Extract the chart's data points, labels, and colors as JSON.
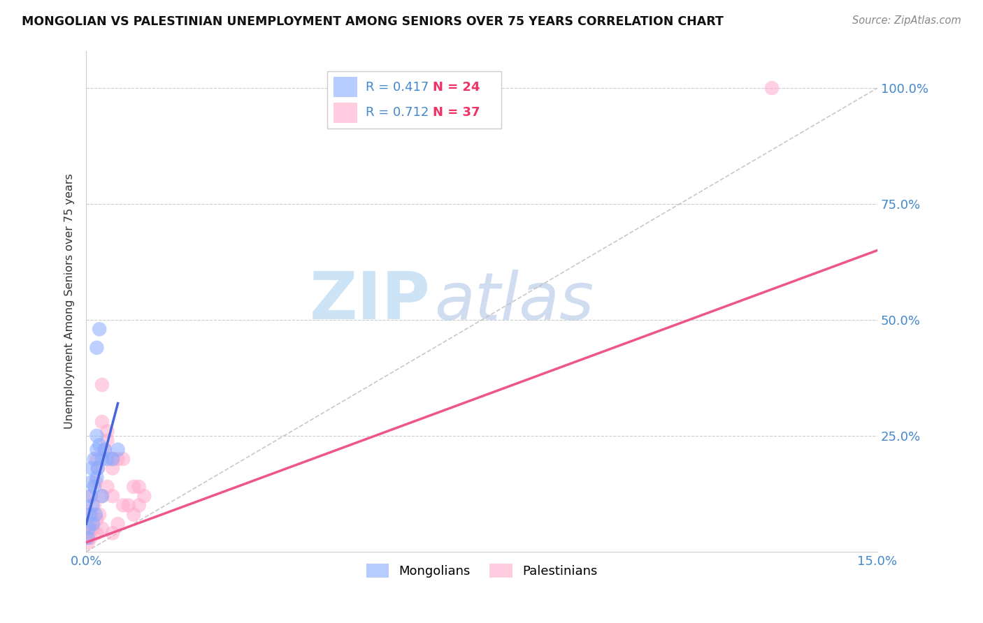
{
  "title": "MONGOLIAN VS PALESTINIAN UNEMPLOYMENT AMONG SENIORS OVER 75 YEARS CORRELATION CHART",
  "source": "Source: ZipAtlas.com",
  "ylabel_label": "Unemployment Among Seniors over 75 years",
  "xlim": [
    0,
    0.15
  ],
  "ylim": [
    0,
    1.08
  ],
  "mongolian_color": "#88aaff",
  "palestinian_color": "#ffaacc",
  "mongolian_line_color": "#4466dd",
  "palestinian_line_color": "#ee5588",
  "diagonal_color": "#bbbbbb",
  "watermark_zip": "ZIP",
  "watermark_atlas": "atlas",
  "legend_r_mongolian": "R = 0.417",
  "legend_n_mongolian": "N = 24",
  "legend_r_palestinian": "R = 0.712",
  "legend_n_palestinian": "N = 37",
  "r_color": "#4488cc",
  "n_color": "#ee3366",
  "mongolian_points_x": [
    0.0003,
    0.0005,
    0.0007,
    0.0008,
    0.001,
    0.001,
    0.0012,
    0.0013,
    0.0015,
    0.0015,
    0.0018,
    0.002,
    0.002,
    0.002,
    0.0022,
    0.0025,
    0.003,
    0.003,
    0.0035,
    0.004,
    0.005,
    0.006,
    0.002,
    0.0025
  ],
  "mongolian_points_y": [
    0.03,
    0.05,
    0.08,
    0.12,
    0.15,
    0.18,
    0.1,
    0.06,
    0.14,
    0.2,
    0.08,
    0.22,
    0.16,
    0.25,
    0.18,
    0.23,
    0.12,
    0.2,
    0.22,
    0.2,
    0.2,
    0.22,
    0.44,
    0.48
  ],
  "palestinian_points_x": [
    0.0003,
    0.0005,
    0.0007,
    0.0008,
    0.001,
    0.001,
    0.0012,
    0.0015,
    0.0018,
    0.002,
    0.002,
    0.002,
    0.0022,
    0.0025,
    0.003,
    0.003,
    0.003,
    0.0035,
    0.004,
    0.004,
    0.005,
    0.005,
    0.005,
    0.006,
    0.006,
    0.007,
    0.007,
    0.008,
    0.009,
    0.009,
    0.01,
    0.01,
    0.011,
    0.003,
    0.004,
    0.005,
    0.13
  ],
  "palestinian_points_y": [
    0.02,
    0.04,
    0.06,
    0.03,
    0.08,
    0.12,
    0.05,
    0.1,
    0.15,
    0.04,
    0.07,
    0.2,
    0.18,
    0.08,
    0.05,
    0.12,
    0.28,
    0.22,
    0.14,
    0.24,
    0.04,
    0.12,
    0.18,
    0.06,
    0.2,
    0.1,
    0.2,
    0.1,
    0.08,
    0.14,
    0.1,
    0.14,
    0.12,
    0.36,
    0.26,
    0.2,
    1.0
  ],
  "mongolian_line_x": [
    0.0,
    0.006
  ],
  "mongolian_line_y": [
    0.06,
    0.32
  ],
  "palestinian_line_x": [
    0.0,
    0.15
  ],
  "palestinian_line_y": [
    0.02,
    0.65
  ]
}
